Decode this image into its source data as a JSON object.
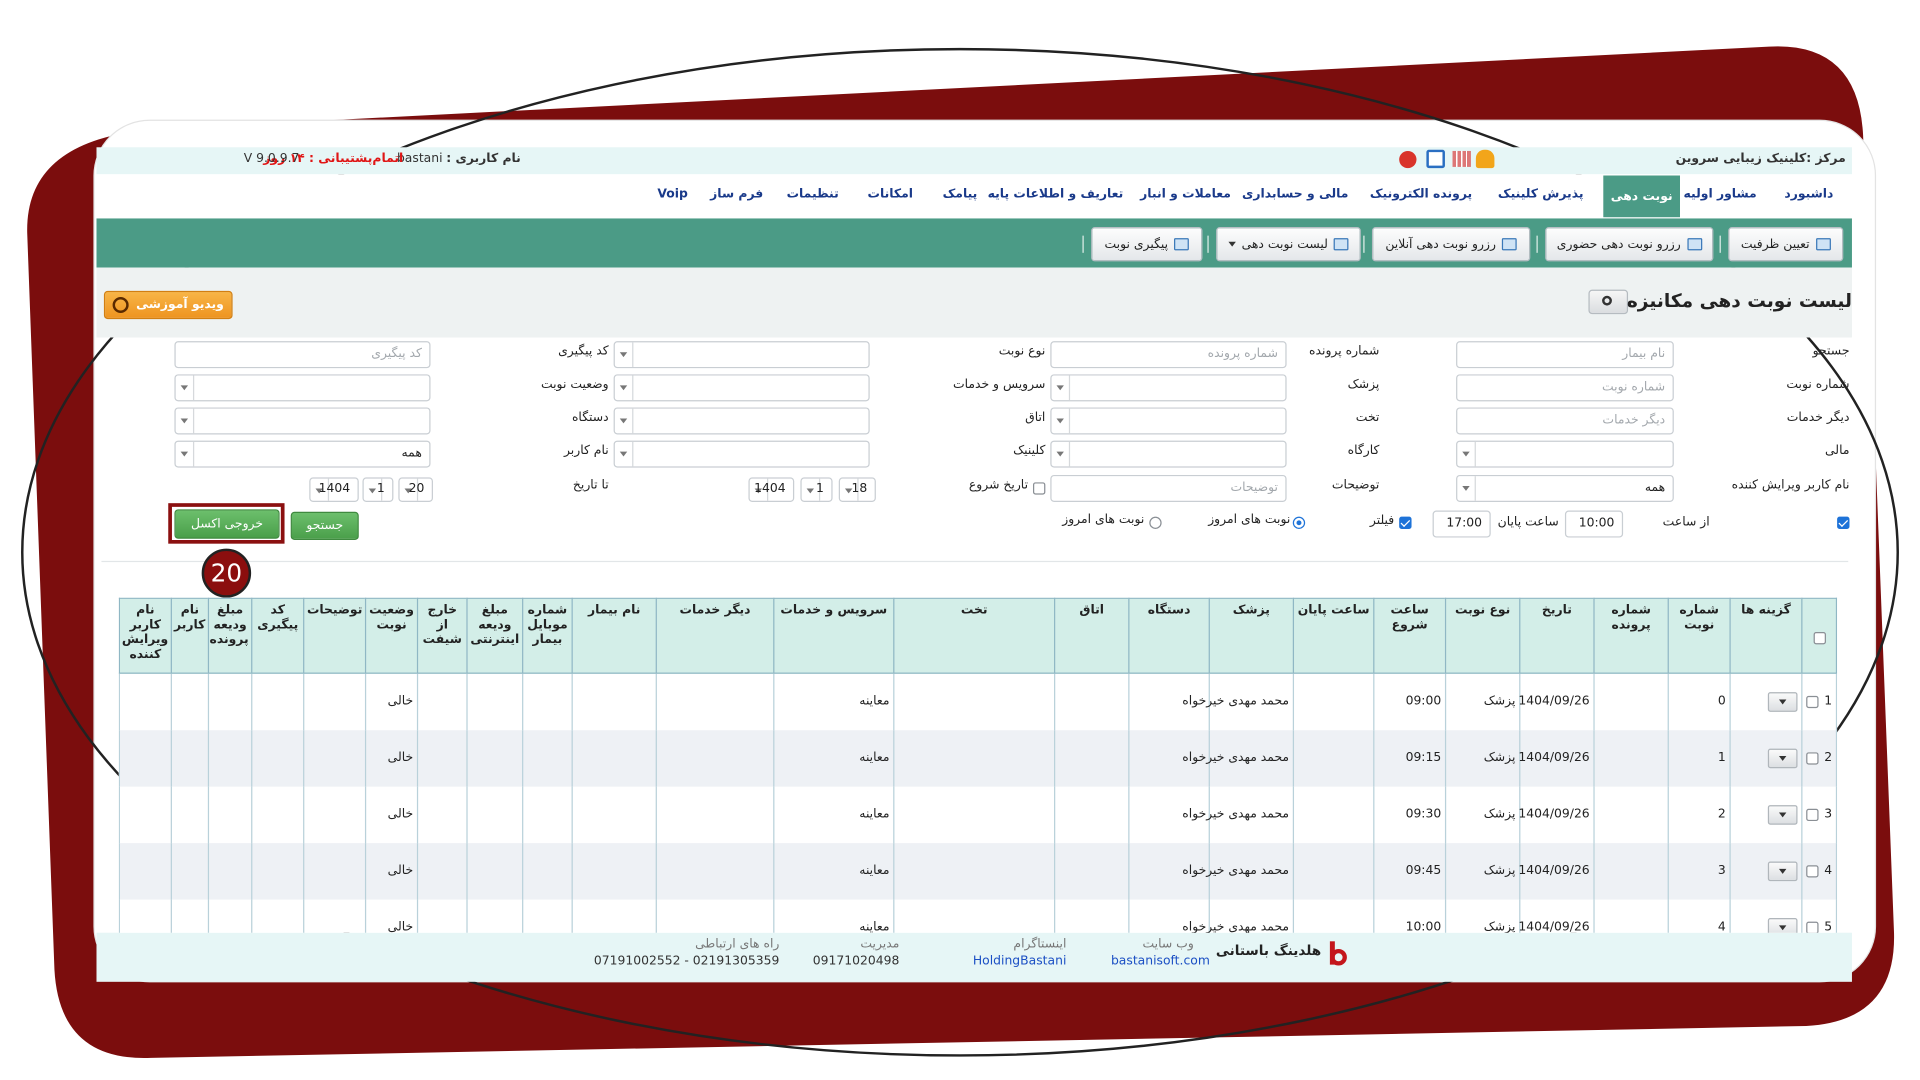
{
  "header": {
    "center": "مرکز :کلینیک زیبایی سروین",
    "user_label": "نام کاربری :",
    "user": "bastani",
    "support": "اتمام‌پشتیبانی : ۱۴ روز",
    "version": "V 9.0.9.7"
  },
  "menu": [
    {
      "label": "داشبورد"
    },
    {
      "label": "مشاور اولیه"
    },
    {
      "label": "نوبت دهی",
      "active": true
    },
    {
      "label": "پذیرش کلینیک"
    },
    {
      "label": "پرونده الکترونیک"
    },
    {
      "label": "مالی و حسابداری"
    },
    {
      "label": "معاملات و انبار"
    },
    {
      "label": "تعاریف و اطلاعات پایه"
    },
    {
      "label": "پیامک"
    },
    {
      "label": "امکانات"
    },
    {
      "label": "تنظیمات"
    },
    {
      "label": "فرم ساز"
    },
    {
      "label": "Voip"
    }
  ],
  "toolbar": [
    {
      "label": "تعیین ظرفیت"
    },
    {
      "label": "رزرو نوبت دهی حضوری"
    },
    {
      "label": "رزرو نوبت دهی آنلاین"
    },
    {
      "label": "لیست نوبت دهی",
      "dropdown": true
    },
    {
      "label": "پیگیری نوبت"
    }
  ],
  "page_title": "لیست نوبت دهی مکانیزه",
  "video_button": "ویدیو آموزشی",
  "filters": [
    [
      {
        "label": "جستجو",
        "kind": "input",
        "placeholder": "نام بیمار"
      },
      {
        "label": "شماره پرونده",
        "kind": "input",
        "placeholder": "شماره پرونده"
      },
      {
        "label": "نوع نوبت",
        "kind": "select"
      },
      {
        "label": "کد پیگیری",
        "kind": "input",
        "placeholder": "کد پیگیری"
      }
    ],
    [
      {
        "label": "شماره نوبت",
        "kind": "input",
        "placeholder": "شماره نوبت"
      },
      {
        "label": "پزشک",
        "kind": "select"
      },
      {
        "label": "سرویس و خدمات",
        "kind": "select"
      },
      {
        "label": "وضعیت نوبت",
        "kind": "select"
      }
    ],
    [
      {
        "label": "دیگر خدمات",
        "kind": "input",
        "placeholder": "دیگر خدمات"
      },
      {
        "label": "تخت",
        "kind": "select"
      },
      {
        "label": "اتاق",
        "kind": "select"
      },
      {
        "label": "دستگاه",
        "kind": "select"
      }
    ],
    [
      {
        "label": "مالی",
        "kind": "select"
      },
      {
        "label": "کارگاه",
        "kind": "select"
      },
      {
        "label": "کلینیک",
        "kind": "select"
      },
      {
        "label": "نام کاربر",
        "kind": "select",
        "value": "همه"
      }
    ],
    [
      {
        "label": "نام کاربر ویرایش کننده",
        "kind": "select",
        "value": "همه"
      },
      {
        "label": "توضیحات",
        "kind": "input",
        "placeholder": "توضیحات"
      }
    ]
  ],
  "date_range": {
    "start_label": "تاریخ شروع",
    "start": [
      18,
      1,
      1404
    ],
    "end_label": "تا تاریخ",
    "end": [
      20,
      1,
      1404
    ]
  },
  "time_range": {
    "enabled": true,
    "from_label": "از ساعت",
    "from": "10:00",
    "to_label": "ساعت پایان",
    "to": "17:00"
  },
  "filter_toggle": {
    "label": "فیلتر",
    "checked": true
  },
  "radios": [
    {
      "label": "نوبت های امروز",
      "checked": true
    },
    {
      "label": "نوبت های امروز",
      "checked": false
    }
  ],
  "buttons": {
    "search": "جستجو",
    "excel": "خروجی اکسل"
  },
  "callout": 20,
  "table": {
    "columns": [
      null,
      "گزینه ها",
      "شماره نوبت",
      "شماره پرونده",
      "تاریخ",
      "نوع نوبت",
      "ساعت شروع",
      "ساعت پایان",
      "پزشک",
      "دستگاه",
      "اتاق",
      "تخت",
      "سرویس و خدمات",
      "دیگر خدمات",
      "نام بیمار",
      "شماره موبایل بیمار",
      "مبلغ ودیعه اینترنتی",
      "خارج از شیفت",
      "وضعیت نوبت",
      "توضیحات",
      "کد پیگیری",
      "مبلغ ودیعه پرونده",
      "نام کاربر",
      "نام کاربر ویرایش کننده"
    ],
    "rows": [
      [
        1,
        null,
        0,
        null,
        "1404/09/26",
        "پزشک",
        "09:00",
        null,
        "محمد مهدی خیرخواه",
        null,
        null,
        null,
        "معاینه",
        null,
        null,
        null,
        null,
        null,
        "خالی",
        null,
        null,
        null,
        null,
        null
      ],
      [
        2,
        null,
        1,
        null,
        "1404/09/26",
        "پزشک",
        "09:15",
        null,
        "محمد مهدی خیرخواه",
        null,
        null,
        null,
        "معاینه",
        null,
        null,
        null,
        null,
        null,
        "خالی",
        null,
        null,
        null,
        null,
        null
      ],
      [
        3,
        null,
        2,
        null,
        "1404/09/26",
        "پزشک",
        "09:30",
        null,
        "محمد مهدی خیرخواه",
        null,
        null,
        null,
        "معاینه",
        null,
        null,
        null,
        null,
        null,
        "خالی",
        null,
        null,
        null,
        null,
        null
      ],
      [
        4,
        null,
        3,
        null,
        "1404/09/26",
        "پزشک",
        "09:45",
        null,
        "محمد مهدی خیرخواه",
        null,
        null,
        null,
        "معاینه",
        null,
        null,
        null,
        null,
        null,
        "خالی",
        null,
        null,
        null,
        null,
        null
      ],
      [
        5,
        null,
        4,
        null,
        "1404/09/26",
        "پزشک",
        "10:00",
        null,
        "محمد مهدی خیرخواه",
        null,
        null,
        null,
        "معاینه",
        null,
        null,
        null,
        null,
        null,
        "خالی",
        null,
        null,
        null,
        null,
        null
      ]
    ]
  },
  "footer": {
    "brand": "هلدینگ باستانی",
    "contacts": [
      {
        "label": "وب سایت",
        "value": "bastanisoft.com"
      },
      {
        "label": "اینستاگرام",
        "value": "HoldingBastani"
      },
      {
        "label": "مدیریت",
        "value": "09171020498"
      },
      {
        "label": "راه های ارتباطی",
        "value": "07191002552 - 02191305359"
      }
    ]
  }
}
